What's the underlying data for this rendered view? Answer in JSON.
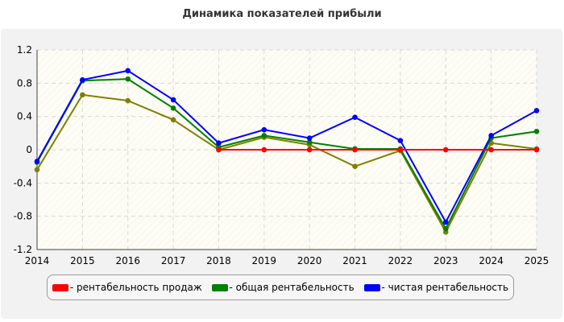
{
  "chart_data": {
    "type": "line",
    "title": "Динамика показателей прибыли",
    "xlabel": "",
    "ylabel": "",
    "x": [
      "2014",
      "2015",
      "2016",
      "2017",
      "2018",
      "2019",
      "2020",
      "2021",
      "2022",
      "2023",
      "2024",
      "2025"
    ],
    "ylim": [
      -1.2,
      1.2
    ],
    "yticks": [
      "1.2",
      "0.8",
      "0.4",
      "0",
      "-0.4",
      "-0.8",
      "-1.2"
    ],
    "grid": true,
    "legend_position": "bottom",
    "series": [
      {
        "name": "- рентабельность продаж",
        "color": "#ff0000",
        "values": [
          null,
          null,
          null,
          null,
          0,
          0,
          0,
          0,
          0,
          0,
          0,
          0
        ]
      },
      {
        "name": "- общая рентабельность",
        "color": "#008000",
        "values": [
          -0.15,
          0.83,
          0.85,
          0.5,
          0.03,
          0.17,
          0.09,
          0.01,
          0.01,
          -0.95,
          0.14,
          0.22
        ]
      },
      {
        "name": "- чистая рентабельность",
        "color": "#0000ff",
        "values": [
          -0.14,
          0.84,
          0.95,
          0.6,
          0.08,
          0.24,
          0.14,
          0.39,
          0.11,
          -0.87,
          0.17,
          0.47
        ]
      },
      {
        "name": "",
        "color": "#808000",
        "values": [
          -0.24,
          0.66,
          0.59,
          0.36,
          0.0,
          0.15,
          0.06,
          -0.2,
          -0.01,
          -0.99,
          0.08,
          0.01
        ]
      }
    ]
  }
}
